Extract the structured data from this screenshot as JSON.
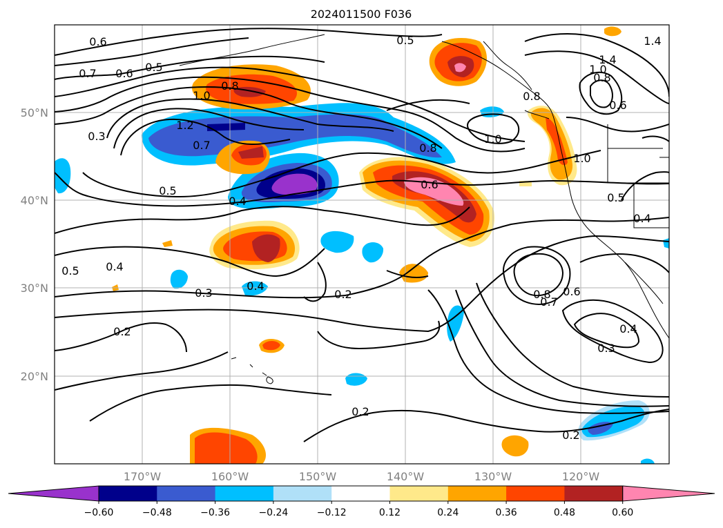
{
  "title": "2024011500 F036",
  "lat_labels": [
    "50°N",
    "40°N",
    "30°N",
    "20°N"
  ],
  "lon_labels": [
    "170°W",
    "160°W",
    "150°W",
    "140°W",
    "130°W",
    "120°W"
  ],
  "colorbar": {
    "ticks": [
      "−0.60",
      "−0.48",
      "−0.36",
      "−0.24",
      "−0.12",
      "0.12",
      "0.24",
      "0.36",
      "0.48",
      "0.60"
    ],
    "colors": [
      "#9932cc",
      "#00008b",
      "#3a5bd0",
      "#00bfff",
      "#b0e0f8",
      "#ffffff",
      "#ffe98a",
      "#ffa500",
      "#ff4500",
      "#b22222",
      "#ff85b0"
    ]
  },
  "contour_labels": [
    {
      "text": "0.6"
    },
    {
      "text": "0.7"
    },
    {
      "text": "0.6"
    },
    {
      "text": "0.5"
    },
    {
      "text": "1.0"
    },
    {
      "text": "0.8"
    },
    {
      "text": "1.2"
    },
    {
      "text": "0.7"
    },
    {
      "text": "0.3"
    },
    {
      "text": "0.5"
    },
    {
      "text": "0.4"
    },
    {
      "text": "0.5"
    },
    {
      "text": "0.4"
    },
    {
      "text": "0.3"
    },
    {
      "text": "0.4"
    },
    {
      "text": "0.2"
    },
    {
      "text": "0.2"
    },
    {
      "text": "0.2"
    },
    {
      "text": "0.2"
    },
    {
      "text": "0.5"
    },
    {
      "text": "0.6"
    },
    {
      "text": "0.8"
    },
    {
      "text": "1.0"
    },
    {
      "text": "0.8"
    },
    {
      "text": "1.4"
    },
    {
      "text": "1.0"
    },
    {
      "text": "0.8"
    },
    {
      "text": "0.6"
    },
    {
      "text": "1.4"
    },
    {
      "text": "1.0"
    },
    {
      "text": "0.5"
    },
    {
      "text": "0.4"
    },
    {
      "text": "0.8"
    },
    {
      "text": "0.7"
    },
    {
      "text": "0.6"
    },
    {
      "text": "0.4"
    },
    {
      "text": "0.3"
    }
  ]
}
